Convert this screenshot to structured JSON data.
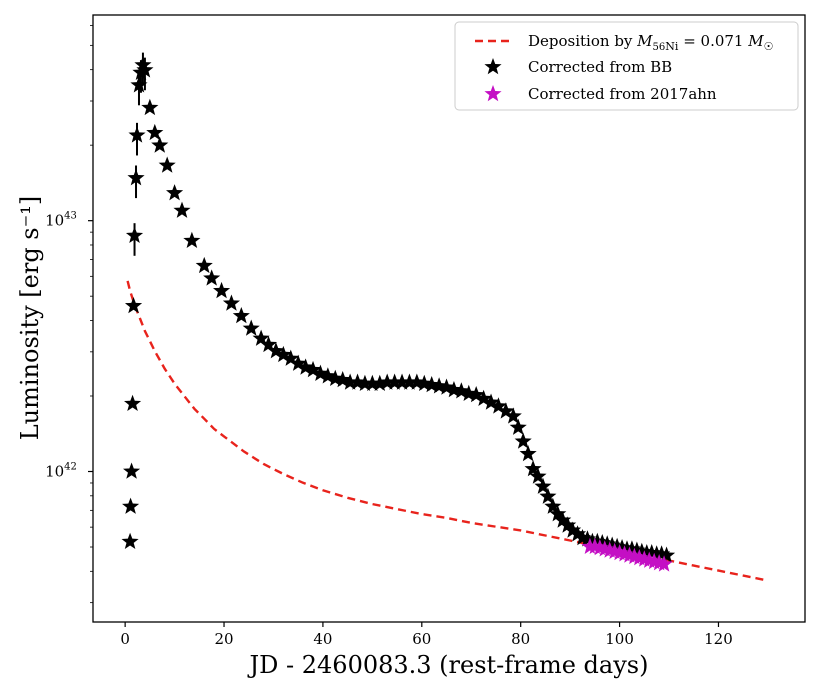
{
  "chart_data": {
    "type": "scatter",
    "title": "",
    "xlabel": "JD - 2460083.3 (rest-frame days)",
    "ylabel": "Luminosity [erg s⁻¹]",
    "xlim": [
      -6.5,
      137.5
    ],
    "ylim_log10": [
      41.4,
      43.82
    ],
    "x_ticks": [
      0,
      20,
      40,
      60,
      80,
      100,
      120
    ],
    "y_ticks": [
      {
        "value_log10": 42,
        "base": "10",
        "exp": "42"
      },
      {
        "value_log10": 43,
        "base": "10",
        "exp": "43"
      }
    ],
    "legend": {
      "position": "top-right",
      "entries": [
        {
          "key": "model",
          "label_parts": [
            "Deposition by ",
            "M",
            "56",
            "Ni",
            " = 0.071 ",
            "M",
            "☉"
          ]
        },
        {
          "key": "bb",
          "label": "Corrected from BB"
        },
        {
          "key": "ahn",
          "label": "Corrected from 2017ahn"
        }
      ]
    },
    "colors": {
      "model": "#e8231c",
      "bb": "#000000",
      "ahn": "#c40fc4"
    },
    "model_curve": {
      "name": "Deposition by M56Ni = 0.071 Msun",
      "x": [
        0.5,
        1,
        2,
        3,
        4,
        5,
        6,
        8,
        10,
        12,
        14,
        16,
        18,
        20,
        24,
        28,
        32,
        36,
        40,
        45,
        50,
        55,
        60,
        65,
        70,
        75,
        80,
        85,
        90,
        95,
        100,
        105,
        110,
        115,
        120,
        125,
        130
      ],
      "y_log10": [
        42.76,
        42.72,
        42.66,
        42.61,
        42.56,
        42.52,
        42.48,
        42.41,
        42.35,
        42.3,
        42.25,
        42.21,
        42.17,
        42.14,
        42.08,
        42.03,
        41.99,
        41.955,
        41.925,
        41.895,
        41.87,
        41.85,
        41.83,
        41.815,
        41.795,
        41.78,
        41.765,
        41.745,
        41.725,
        41.705,
        41.685,
        41.665,
        41.645,
        41.625,
        41.605,
        41.585,
        41.565
      ]
    },
    "series": [
      {
        "name": "Corrected from BB",
        "x": [
          1.0,
          1.1,
          1.3,
          1.5,
          1.7,
          1.9,
          2.2,
          2.4,
          2.8,
          3.2,
          3.6,
          4.0,
          5.0,
          6.0,
          7.0,
          8.5,
          10.0,
          11.5,
          13.5,
          16.0,
          17.5,
          19.5,
          21.5,
          23.5,
          25.5,
          27.5,
          29.0,
          30.5,
          32.0,
          33.5,
          35.0,
          36.5,
          38.0,
          39.5,
          41.0,
          42.5,
          44.0,
          45.5,
          47.0,
          48.5,
          50.0,
          51.5,
          53.0,
          54.5,
          56.0,
          57.5,
          59.0,
          60.5,
          62.0,
          63.5,
          65.0,
          66.5,
          68.0,
          69.5,
          71.0,
          72.5,
          74.0,
          75.5,
          77.0,
          78.5,
          79.5,
          80.5,
          81.5,
          82.5,
          83.5,
          84.5,
          85.5,
          86.5,
          87.5,
          88.5,
          89.5,
          90.5,
          91.5,
          92.5,
          93.5,
          94.5,
          95.5,
          96.5,
          97.5,
          98.5,
          99.5,
          100.5,
          101.5,
          102.5,
          103.5,
          104.5,
          105.5,
          106.5,
          107.5,
          108.5,
          109.5
        ],
        "y_log10": [
          41.72,
          41.86,
          42.0,
          42.27,
          42.66,
          42.94,
          43.17,
          43.34,
          43.54,
          43.59,
          43.62,
          43.6,
          43.45,
          43.35,
          43.3,
          43.22,
          43.11,
          43.04,
          42.92,
          42.82,
          42.77,
          42.72,
          42.67,
          42.62,
          42.57,
          42.53,
          42.505,
          42.48,
          42.465,
          42.45,
          42.43,
          42.415,
          42.405,
          42.39,
          42.38,
          42.37,
          42.365,
          42.355,
          42.355,
          42.35,
          42.35,
          42.35,
          42.355,
          42.355,
          42.355,
          42.355,
          42.355,
          42.35,
          42.345,
          42.34,
          42.335,
          42.325,
          42.32,
          42.31,
          42.305,
          42.29,
          42.275,
          42.26,
          42.24,
          42.22,
          42.175,
          42.12,
          42.07,
          42.01,
          41.98,
          41.94,
          41.9,
          41.86,
          41.83,
          41.805,
          41.785,
          41.765,
          41.75,
          41.735,
          41.73,
          41.72,
          41.72,
          41.715,
          41.71,
          41.705,
          41.7,
          41.695,
          41.69,
          41.69,
          41.685,
          41.68,
          41.675,
          41.675,
          41.67,
          41.67,
          41.665
        ]
      },
      {
        "name": "Corrected from 2017ahn",
        "x": [
          94.0,
          95.0,
          96.0,
          97.0,
          98.0,
          99.0,
          100.0,
          101.0,
          102.0,
          103.0,
          104.0,
          105.0,
          106.0,
          107.0,
          108.0,
          109.0
        ],
        "y_log10": [
          41.7,
          41.7,
          41.695,
          41.69,
          41.685,
          41.68,
          41.675,
          41.67,
          41.665,
          41.66,
          41.655,
          41.65,
          41.645,
          41.64,
          41.635,
          41.63
        ]
      }
    ]
  }
}
